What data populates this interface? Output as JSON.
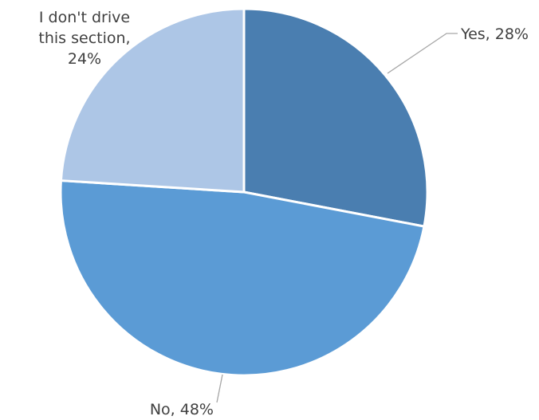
{
  "chart_data": {
    "type": "pie",
    "title": "",
    "categories": [
      "Yes",
      "No",
      "I don't drive this section"
    ],
    "values": [
      28,
      48,
      24
    ],
    "value_unit": "%",
    "colors": [
      "#4a7eb0",
      "#5b9bd5",
      "#adc6e6"
    ],
    "legend": "none",
    "data_labels": [
      {
        "lines": [
          "Yes, 28%"
        ]
      },
      {
        "lines": [
          "No, 48%"
        ]
      },
      {
        "lines": [
          "I don't drive",
          "this section,",
          "24%"
        ]
      }
    ]
  }
}
